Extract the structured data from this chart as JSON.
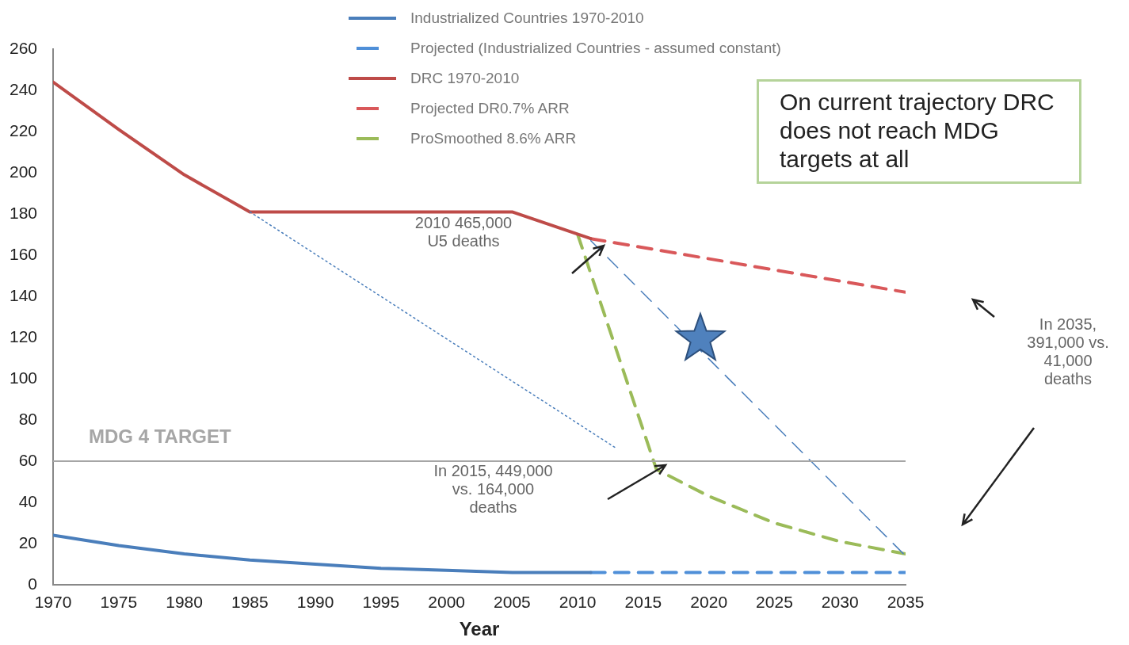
{
  "chart_data": {
    "type": "line",
    "xlabel": "Year",
    "xlim": [
      1970,
      2035
    ],
    "xticks": [
      1970,
      1975,
      1980,
      1985,
      1990,
      1995,
      2000,
      2005,
      2010,
      2015,
      2020,
      2025,
      2030,
      2035
    ],
    "ylim": [
      0,
      260
    ],
    "yticks": [
      0,
      20,
      40,
      60,
      80,
      100,
      120,
      140,
      160,
      180,
      200,
      220,
      240,
      260
    ],
    "grid": false,
    "legend": "top",
    "marker": "none",
    "series": [
      {
        "name": "Industrialized Countries 1970-2010",
        "color": "#4a7ebb",
        "line_style": "solid",
        "x": [
          1970,
          1975,
          1980,
          1985,
          1990,
          1995,
          2000,
          2005,
          2011
        ],
        "values": [
          24,
          19,
          15,
          12,
          10,
          8,
          7,
          6,
          6
        ]
      },
      {
        "name": "Projected (Industrialized Countries - assumed constant)",
        "color": "#4f8fd8",
        "line_style": "dashed",
        "x": [
          2011,
          2035
        ],
        "values": [
          6,
          6
        ]
      },
      {
        "name": "DRC 1970-2010",
        "color": "#be4b48",
        "line_style": "solid",
        "x": [
          1970,
          1975,
          1980,
          1985,
          2005,
          2011
        ],
        "values": [
          244,
          221,
          199,
          181,
          181,
          168
        ]
      },
      {
        "name": "Projected DR0.7% ARR",
        "color": "#d9585a",
        "line_style": "dashed",
        "x": [
          2011,
          2035
        ],
        "values": [
          168,
          142
        ]
      },
      {
        "name": "ProSmoothed 8.6% ARR",
        "color": "#9bbb59",
        "line_style": "dashed",
        "x": [
          2010,
          2016,
          2020,
          2025,
          2030,
          2035
        ],
        "values": [
          170,
          56,
          43,
          30,
          21,
          15
        ]
      },
      {
        "color": "#4a7ebb",
        "line_style": "dashed",
        "x": [
          2011,
          2035
        ],
        "values": [
          167,
          14
        ]
      },
      {
        "color": "#4a7ebb",
        "line_style": "dotted",
        "x": [
          1985,
          2013
        ],
        "values": [
          181,
          66
        ]
      }
    ],
    "ref_lines": [
      {
        "axis": "y",
        "value": 60,
        "label": "MDG 4 TARGET",
        "color": "#a6a6a6"
      }
    ],
    "annotations": [
      "On current trajectory DRC does not reach MDG targets at all",
      "2010 465,000 U5 deaths",
      "In 2015, 449,000 vs. 164,000 deaths",
      "In 2035, 391,000 vs. 41,000 deaths"
    ]
  }
}
